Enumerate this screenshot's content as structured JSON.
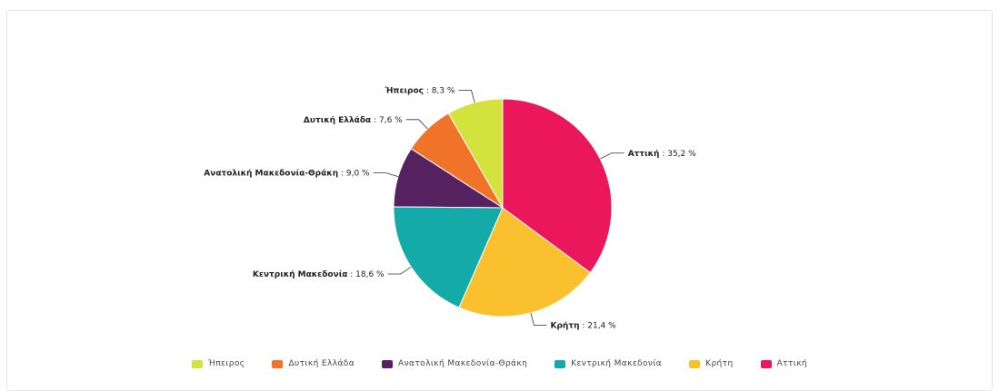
{
  "chart_data": {
    "type": "pie",
    "title": "",
    "slices": [
      {
        "name": "Ήπειρος",
        "value": 8.3,
        "color": "#d4e23d",
        "label_value": "8,3 %"
      },
      {
        "name": "Δυτική Ελλάδα",
        "value": 7.6,
        "color": "#f07329",
        "label_value": "7,6 %"
      },
      {
        "name": "Ανατολική Μακεδονία-Θράκη",
        "value": 9.0,
        "color": "#55215f",
        "label_value": "9,0 %"
      },
      {
        "name": "Κεντρική Μακεδονία",
        "value": 18.6,
        "color": "#13aaa8",
        "label_value": "18,6 %"
      },
      {
        "name": "Κρήτη",
        "value": 21.4,
        "color": "#fbc02d",
        "label_value": "21,4 %"
      },
      {
        "name": "Αττική",
        "value": 35.2,
        "color": "#ea175c",
        "label_value": "35,2 %"
      }
    ],
    "legend_position": "bottom"
  }
}
